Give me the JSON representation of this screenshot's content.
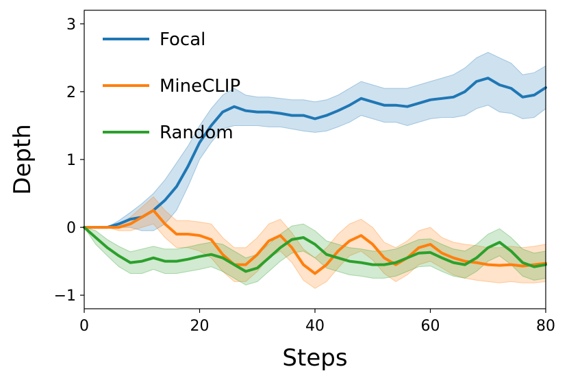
{
  "chart_data": {
    "type": "line",
    "title": "",
    "xlabel": "Steps",
    "ylabel": "Depth",
    "xlim": [
      0,
      80
    ],
    "ylim": [
      -1.2,
      3.2
    ],
    "x_ticks": [
      "0",
      "20",
      "40",
      "60",
      "80"
    ],
    "y_ticks": [
      "−1",
      "0",
      "1",
      "2",
      "3"
    ],
    "x_tick_values": [
      0,
      20,
      40,
      60,
      80
    ],
    "y_tick_values": [
      -1,
      0,
      1,
      2,
      3
    ],
    "grid": false,
    "legend_position": "top-left",
    "x": [
      0,
      2,
      4,
      6,
      8,
      10,
      12,
      14,
      16,
      18,
      20,
      22,
      24,
      26,
      28,
      30,
      32,
      34,
      36,
      38,
      40,
      42,
      44,
      46,
      48,
      50,
      52,
      54,
      56,
      58,
      60,
      62,
      64,
      66,
      68,
      70,
      72,
      74,
      76,
      78,
      80
    ],
    "series": [
      {
        "name": "Focal",
        "color": "#1f77b4",
        "values": [
          0.0,
          0.0,
          0.0,
          0.05,
          0.12,
          0.15,
          0.25,
          0.4,
          0.6,
          0.9,
          1.25,
          1.5,
          1.7,
          1.78,
          1.72,
          1.7,
          1.7,
          1.68,
          1.65,
          1.65,
          1.6,
          1.65,
          1.72,
          1.8,
          1.9,
          1.85,
          1.8,
          1.8,
          1.78,
          1.83,
          1.88,
          1.9,
          1.92,
          2.0,
          2.15,
          2.2,
          2.1,
          2.05,
          1.92,
          1.95,
          2.06
        ],
        "lower": [
          0.0,
          0.0,
          0.0,
          0.0,
          0.0,
          -0.05,
          -0.05,
          0.05,
          0.25,
          0.6,
          1.0,
          1.25,
          1.45,
          1.5,
          1.5,
          1.5,
          1.48,
          1.48,
          1.45,
          1.42,
          1.4,
          1.42,
          1.48,
          1.55,
          1.65,
          1.6,
          1.55,
          1.55,
          1.5,
          1.55,
          1.6,
          1.62,
          1.62,
          1.65,
          1.75,
          1.8,
          1.7,
          1.68,
          1.6,
          1.62,
          1.75
        ],
        "upper": [
          0.0,
          0.0,
          0.0,
          0.1,
          0.22,
          0.35,
          0.5,
          0.7,
          0.95,
          1.2,
          1.5,
          1.75,
          1.95,
          2.05,
          1.95,
          1.92,
          1.92,
          1.9,
          1.88,
          1.88,
          1.85,
          1.88,
          1.95,
          2.05,
          2.15,
          2.1,
          2.05,
          2.05,
          2.05,
          2.1,
          2.15,
          2.2,
          2.25,
          2.35,
          2.5,
          2.58,
          2.5,
          2.42,
          2.25,
          2.28,
          2.38
        ]
      },
      {
        "name": "MineCLIP",
        "color": "#ff7f0e",
        "values": [
          0.0,
          0.0,
          0.0,
          0.0,
          0.05,
          0.15,
          0.25,
          0.05,
          -0.1,
          -0.1,
          -0.12,
          -0.18,
          -0.4,
          -0.55,
          -0.55,
          -0.4,
          -0.2,
          -0.12,
          -0.3,
          -0.55,
          -0.68,
          -0.55,
          -0.35,
          -0.2,
          -0.12,
          -0.25,
          -0.45,
          -0.55,
          -0.45,
          -0.3,
          -0.25,
          -0.38,
          -0.45,
          -0.5,
          -0.52,
          -0.55,
          -0.56,
          -0.55,
          -0.57,
          -0.55,
          -0.53
        ],
        "lower": [
          0.0,
          0.0,
          0.0,
          -0.05,
          -0.05,
          0.0,
          0.05,
          -0.15,
          -0.3,
          -0.3,
          -0.35,
          -0.45,
          -0.65,
          -0.8,
          -0.8,
          -0.65,
          -0.45,
          -0.35,
          -0.52,
          -0.78,
          -0.9,
          -0.8,
          -0.6,
          -0.42,
          -0.35,
          -0.48,
          -0.68,
          -0.8,
          -0.7,
          -0.55,
          -0.5,
          -0.6,
          -0.7,
          -0.75,
          -0.78,
          -0.8,
          -0.82,
          -0.8,
          -0.82,
          -0.82,
          -0.8
        ],
        "upper": [
          0.0,
          0.0,
          0.0,
          0.05,
          0.15,
          0.3,
          0.45,
          0.25,
          0.1,
          0.1,
          0.08,
          0.05,
          -0.15,
          -0.3,
          -0.3,
          -0.15,
          0.05,
          0.12,
          -0.08,
          -0.32,
          -0.45,
          -0.3,
          -0.1,
          0.05,
          0.12,
          0.0,
          -0.22,
          -0.3,
          -0.2,
          -0.05,
          0.0,
          -0.15,
          -0.22,
          -0.25,
          -0.27,
          -0.3,
          -0.3,
          -0.28,
          -0.3,
          -0.28,
          -0.25
        ]
      },
      {
        "name": "Random",
        "color": "#2ca02c",
        "values": [
          0.0,
          -0.15,
          -0.3,
          -0.42,
          -0.52,
          -0.5,
          -0.45,
          -0.5,
          -0.5,
          -0.47,
          -0.43,
          -0.4,
          -0.45,
          -0.55,
          -0.65,
          -0.6,
          -0.45,
          -0.3,
          -0.18,
          -0.15,
          -0.25,
          -0.4,
          -0.45,
          -0.5,
          -0.52,
          -0.55,
          -0.55,
          -0.52,
          -0.45,
          -0.38,
          -0.37,
          -0.45,
          -0.52,
          -0.55,
          -0.45,
          -0.3,
          -0.22,
          -0.35,
          -0.52,
          -0.58,
          -0.55
        ],
        "lower": [
          0.0,
          -0.25,
          -0.42,
          -0.58,
          -0.68,
          -0.68,
          -0.62,
          -0.68,
          -0.68,
          -0.65,
          -0.62,
          -0.58,
          -0.65,
          -0.75,
          -0.85,
          -0.8,
          -0.65,
          -0.5,
          -0.38,
          -0.35,
          -0.45,
          -0.6,
          -0.65,
          -0.7,
          -0.72,
          -0.75,
          -0.75,
          -0.72,
          -0.65,
          -0.58,
          -0.57,
          -0.65,
          -0.72,
          -0.75,
          -0.65,
          -0.5,
          -0.42,
          -0.55,
          -0.72,
          -0.78,
          -0.75
        ],
        "upper": [
          0.0,
          -0.05,
          -0.18,
          -0.28,
          -0.36,
          -0.32,
          -0.28,
          -0.32,
          -0.32,
          -0.29,
          -0.25,
          -0.22,
          -0.25,
          -0.35,
          -0.45,
          -0.4,
          -0.25,
          -0.1,
          0.02,
          0.05,
          -0.05,
          -0.2,
          -0.25,
          -0.3,
          -0.32,
          -0.35,
          -0.35,
          -0.32,
          -0.25,
          -0.18,
          -0.17,
          -0.25,
          -0.32,
          -0.35,
          -0.25,
          -0.1,
          -0.02,
          -0.15,
          -0.32,
          -0.38,
          -0.35
        ]
      }
    ]
  }
}
